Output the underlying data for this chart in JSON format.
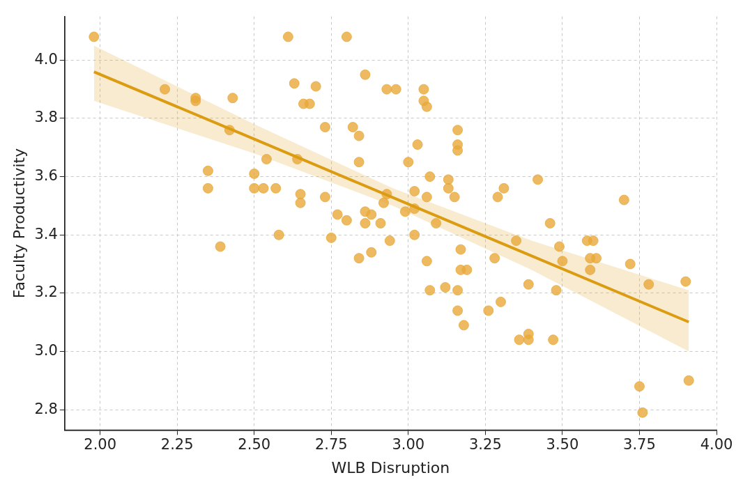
{
  "chart_data": {
    "type": "scatter",
    "xlabel": "WLB Disruption",
    "ylabel": "Faculty Productivity",
    "xlim": [
      1.885,
      4.0
    ],
    "ylim": [
      2.73,
      4.15
    ],
    "xticks": [
      {
        "value": 2,
        "label": "2.00"
      },
      {
        "value": 2.25,
        "label": "2.25"
      },
      {
        "value": 2.5,
        "label": "2.50"
      },
      {
        "value": 2.75,
        "label": "2.75"
      },
      {
        "value": 3,
        "label": "3.00"
      },
      {
        "value": 3.25,
        "label": "3.25"
      },
      {
        "value": 3.5,
        "label": "3.50"
      },
      {
        "value": 3.75,
        "label": "3.75"
      },
      {
        "value": 4,
        "label": "4.00"
      }
    ],
    "yticks": [
      {
        "value": 2.8,
        "label": "2.8"
      },
      {
        "value": 3,
        "label": "3.0"
      },
      {
        "value": 3.2,
        "label": "3.2"
      },
      {
        "value": 3.4,
        "label": "3.4"
      },
      {
        "value": 3.6,
        "label": "3.6"
      },
      {
        "value": 3.8,
        "label": "3.8"
      },
      {
        "value": 4,
        "label": "4.0"
      }
    ],
    "grid": true,
    "marker": "circle",
    "series": [
      {
        "color": "#e8a93a",
        "x": [
          1.98,
          2.21,
          2.31,
          2.31,
          2.43,
          2.42,
          2.35,
          2.35,
          2.39,
          2.5,
          2.5,
          2.53,
          2.54,
          2.57,
          2.58,
          2.61,
          2.63,
          2.64,
          2.65,
          2.65,
          2.66,
          2.68,
          2.7,
          2.73,
          2.73,
          2.75,
          2.77,
          2.8,
          2.8,
          2.82,
          2.84,
          2.84,
          2.84,
          2.86,
          2.86,
          2.86,
          2.88,
          2.88,
          2.91,
          2.92,
          2.93,
          2.93,
          2.94,
          2.96,
          2.99,
          3.0,
          3.02,
          3.02,
          3.02,
          3.03,
          3.05,
          3.05,
          3.06,
          3.06,
          3.07,
          3.06,
          3.07,
          3.09,
          3.12,
          3.13,
          3.13,
          3.15,
          3.16,
          3.16,
          3.16,
          3.16,
          3.16,
          3.17,
          3.17,
          3.19,
          3.18,
          3.26,
          3.28,
          3.3,
          3.29,
          3.31,
          3.35,
          3.36,
          3.39,
          3.39,
          3.39,
          3.42,
          3.46,
          3.47,
          3.49,
          3.48,
          3.5,
          3.58,
          3.6,
          3.59,
          3.61,
          3.59,
          3.7,
          3.72,
          3.78,
          3.9,
          3.75,
          3.76,
          3.91
        ],
        "values": [
          4.08,
          3.9,
          3.87,
          3.86,
          3.87,
          3.76,
          3.62,
          3.56,
          3.36,
          3.61,
          3.56,
          3.56,
          3.66,
          3.56,
          3.4,
          4.08,
          3.92,
          3.66,
          3.54,
          3.51,
          3.85,
          3.85,
          3.91,
          3.77,
          3.53,
          3.39,
          3.47,
          4.08,
          3.45,
          3.77,
          3.74,
          3.65,
          3.32,
          3.95,
          3.48,
          3.44,
          3.47,
          3.34,
          3.44,
          3.51,
          3.9,
          3.54,
          3.38,
          3.9,
          3.48,
          3.65,
          3.55,
          3.4,
          3.49,
          3.71,
          3.9,
          3.86,
          3.84,
          3.53,
          3.6,
          3.31,
          3.21,
          3.44,
          3.22,
          3.59,
          3.56,
          3.53,
          3.76,
          3.71,
          3.69,
          3.21,
          3.14,
          3.35,
          3.28,
          3.28,
          3.09,
          3.14,
          3.32,
          3.17,
          3.53,
          3.56,
          3.38,
          3.04,
          3.06,
          3.04,
          3.23,
          3.59,
          3.44,
          3.04,
          3.36,
          3.21,
          3.31,
          3.38,
          3.38,
          3.32,
          3.32,
          3.28,
          3.52,
          3.3,
          3.23,
          3.24,
          2.88,
          2.79,
          2.9
        ]
      },
      {
        "type": "line",
        "color": "#dc9c12",
        "marker": "none",
        "x": [
          1.98,
          2.5,
          2.95,
          3.4,
          3.91
        ],
        "values": [
          3.96,
          3.729,
          3.528,
          3.328,
          3.101
        ],
        "lower": [
          3.86,
          3.68,
          3.5,
          3.28,
          3.0
        ],
        "upper": [
          4.05,
          3.78,
          3.56,
          3.38,
          3.21
        ]
      }
    ]
  }
}
